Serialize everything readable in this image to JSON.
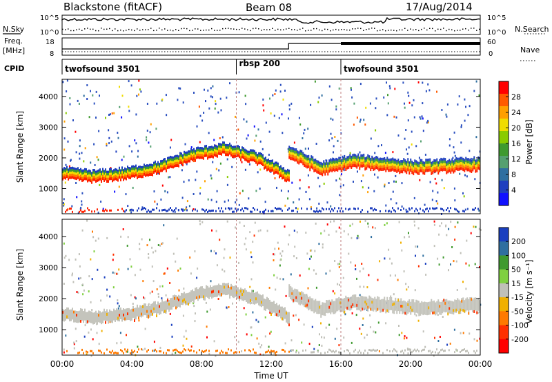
{
  "header": {
    "station": "Blackstone (fitACF)",
    "beam": "Beam 08",
    "date": "17/Aug/2014"
  },
  "side_labels": {
    "nsky": "N.Sky",
    "freq_line1": "Freq.",
    "freq_line2": "[MHz]",
    "cpid": "CPID",
    "nsearch": "N.Search",
    "nave": "Nave"
  },
  "noise_axis": {
    "left_ticks": [
      "10^5",
      "10^0"
    ],
    "right_ticks": [
      "10^5",
      "10^0"
    ]
  },
  "freq_axis": {
    "left_ticks": [
      "18",
      "8"
    ],
    "right_ticks": [
      "60",
      "0"
    ]
  },
  "cpid_segments": [
    {
      "label": "twofsound 3501",
      "start_hour": 0,
      "end_hour": 10.0
    },
    {
      "label": "rbsp 200",
      "start_hour": 10.0,
      "end_hour": 16.0
    },
    {
      "label": "twofsound 3501",
      "start_hour": 16.0,
      "end_hour": 24
    }
  ],
  "power_colorbar": {
    "label": "Power [dB]",
    "ticks": [
      "28",
      "24",
      "20",
      "16",
      "12",
      "8",
      "4"
    ],
    "colors": [
      "#ff0000",
      "#ff5a00",
      "#ff9f00",
      "#f0dc00",
      "#8acb00",
      "#3f9a2f",
      "#55a070",
      "#2f6fa0",
      "#1f3fbf",
      "#1010ff"
    ]
  },
  "velocity_colorbar": {
    "label": "Velocity [m s⁻¹]",
    "ticks": [
      "200",
      "100",
      "50",
      "15",
      "-15",
      "-50",
      "-100",
      "-200"
    ],
    "colors": [
      "#1a3fbf",
      "#2f6fa0",
      "#3f9a2f",
      "#7fd040",
      "#c0c0b8",
      "#f0b000",
      "#ff7a00",
      "#ff3000",
      "#ff0000"
    ]
  },
  "x_axis": {
    "label": "Time UT",
    "ticks": [
      "00:00",
      "04:00",
      "08:00",
      "12:00",
      "16:00",
      "20:00",
      "00:00"
    ]
  },
  "y_axis": {
    "label": "Slant Range [km]",
    "ticks": [
      "4000",
      "3000",
      "2000",
      "1000"
    ]
  },
  "chart_data": {
    "type": "heatmap",
    "x_range_hours": [
      0,
      24
    ],
    "y_range_km": [
      180,
      4560
    ],
    "panels": [
      {
        "name": "power",
        "bands": [
          {
            "start_hour": 0.0,
            "end_hour": 13.0,
            "center_km": [
              1500,
              1400,
              1500,
              1700,
              2100,
              2300,
              2000,
              1400
            ],
            "width_km": 380
          },
          {
            "start_hour": 13.0,
            "end_hour": 24.0,
            "center_km": [
              2200,
              1650,
              1900,
              1800,
              1700,
              1750,
              1800
            ],
            "width_km": 420
          }
        ]
      },
      {
        "name": "velocity",
        "bands": [
          {
            "start_hour": 0.0,
            "end_hour": 13.0,
            "center_km": [
              1500,
              1400,
              1500,
              1700,
              2100,
              2300,
              2000,
              1400
            ],
            "width_km": 380
          },
          {
            "start_hour": 13.0,
            "end_hour": 24.0,
            "center_km": [
              2200,
              1650,
              1900,
              1800,
              1700,
              1750,
              1800
            ],
            "width_km": 420
          }
        ]
      }
    ]
  }
}
